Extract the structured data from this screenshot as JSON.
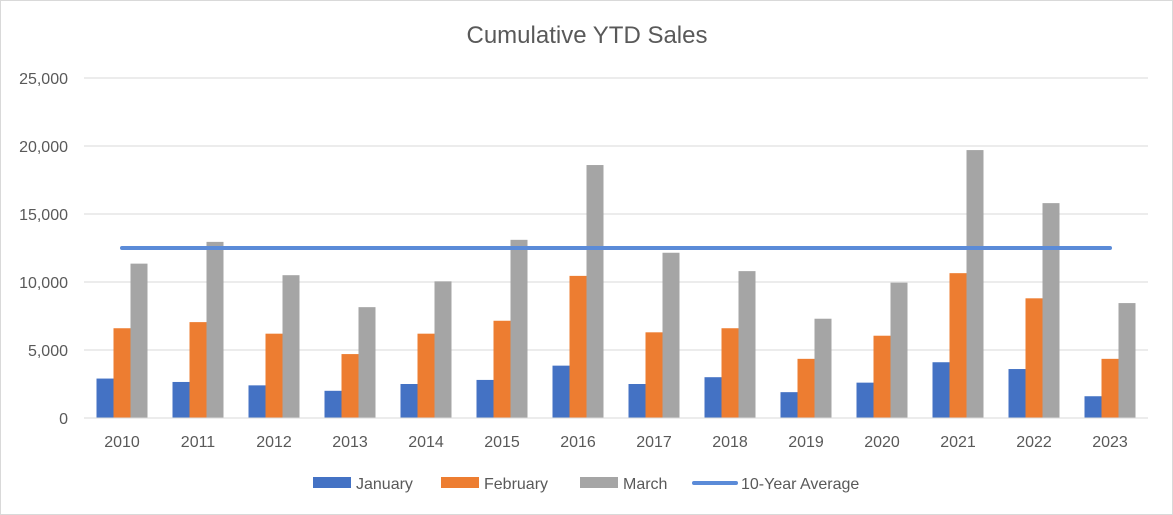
{
  "chart_data": {
    "type": "bar",
    "title": "Cumulative YTD Sales",
    "xlabel": "",
    "ylabel": "",
    "ylim": [
      0,
      25000
    ],
    "yticks": [
      0,
      5000,
      10000,
      15000,
      20000,
      25000
    ],
    "ytick_labels": [
      "0",
      "5,000",
      "10,000",
      "15,000",
      "20,000",
      "25,000"
    ],
    "grid": true,
    "legend_position": "bottom",
    "categories": [
      "2010",
      "2011",
      "2012",
      "2013",
      "2014",
      "2015",
      "2016",
      "2017",
      "2018",
      "2019",
      "2020",
      "2021",
      "2022",
      "2023"
    ],
    "series": [
      {
        "name": "January",
        "color": "#4472C4",
        "values": [
          2900,
          2650,
          2400,
          2000,
          2500,
          2800,
          3850,
          2500,
          3000,
          1900,
          2600,
          4100,
          3600,
          1600
        ]
      },
      {
        "name": "February",
        "color": "#ED7D31",
        "values": [
          6600,
          7050,
          6200,
          4700,
          6200,
          7150,
          10450,
          6300,
          6600,
          4350,
          6050,
          10650,
          8800,
          4350
        ]
      },
      {
        "name": "March",
        "color": "#A5A5A5",
        "values": [
          11350,
          12950,
          10500,
          8150,
          10050,
          13100,
          18600,
          12150,
          10800,
          7300,
          9950,
          19700,
          15800,
          8450
        ]
      }
    ],
    "line_series": {
      "name": "10-Year Average",
      "color": "#5B8BD8",
      "type": "line",
      "values": [
        12500,
        12500,
        12500,
        12500,
        12500,
        12500,
        12500,
        12500,
        12500,
        12500,
        12500,
        12500,
        12500,
        12500
      ]
    }
  }
}
